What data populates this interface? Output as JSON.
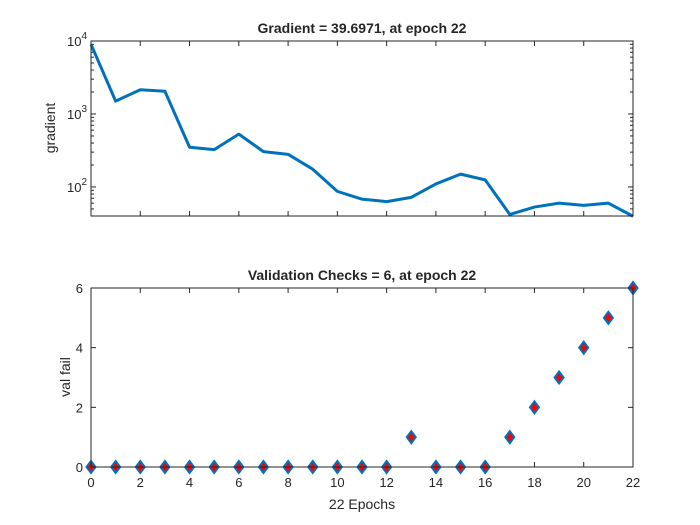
{
  "chart_data": [
    {
      "type": "line",
      "title": "Gradient = 39.6971, at epoch 22",
      "ylabel": "gradient",
      "xlabel": "",
      "yscale": "log",
      "ylim": [
        40,
        10000
      ],
      "xlim": [
        0,
        22
      ],
      "yticks": [
        {
          "base": "10",
          "exp": "2",
          "value": 100
        },
        {
          "base": "10",
          "exp": "3",
          "value": 1000
        },
        {
          "base": "10",
          "exp": "4",
          "value": 10000
        }
      ],
      "line_color": "#0072BD",
      "x": [
        0,
        1,
        2,
        3,
        4,
        5,
        6,
        7,
        8,
        9,
        10,
        11,
        12,
        13,
        14,
        15,
        16,
        17,
        18,
        19,
        20,
        21,
        22
      ],
      "values": [
        9000,
        1500,
        2150,
        2050,
        350,
        325,
        530,
        305,
        280,
        175,
        87,
        68,
        63,
        72,
        110,
        150,
        125,
        42,
        53,
        60,
        56,
        60,
        39.6971
      ]
    },
    {
      "type": "scatter",
      "title": "Validation Checks = 6, at epoch 22",
      "ylabel": "val fail",
      "xlabel": "22 Epochs",
      "ylim": [
        0,
        6
      ],
      "xlim": [
        0,
        22
      ],
      "yticks": [
        0,
        2,
        4,
        6
      ],
      "xticks": [
        0,
        2,
        4,
        6,
        8,
        10,
        12,
        14,
        16,
        18,
        20,
        22
      ],
      "marker": "diamond",
      "marker_edge_color": "#0072BD",
      "marker_face_color": "#FF0000",
      "x": [
        0,
        1,
        2,
        3,
        4,
        5,
        6,
        7,
        8,
        9,
        10,
        11,
        12,
        13,
        14,
        15,
        16,
        17,
        18,
        19,
        20,
        21,
        22
      ],
      "values": [
        0,
        0,
        0,
        0,
        0,
        0,
        0,
        0,
        0,
        0,
        0,
        0,
        0,
        1,
        0,
        0,
        0,
        1,
        2,
        3,
        4,
        5,
        6
      ]
    }
  ]
}
